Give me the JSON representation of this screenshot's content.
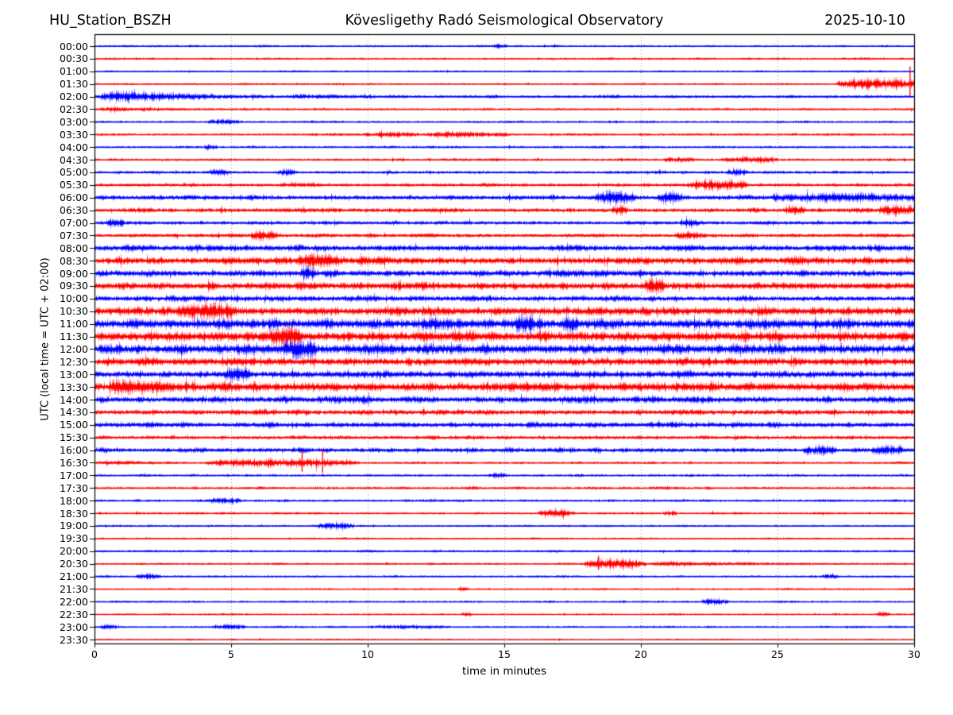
{
  "header": {
    "station": "HU_Station_BSZH",
    "observatory": "Kövesligethy Radó Seismological Observatory",
    "date": "2025-10-10"
  },
  "axes": {
    "ylabel": "UTC (local time = UTC + 02:00)",
    "xlabel": "time in minutes",
    "x_tick_labels": [
      "0",
      "5",
      "10",
      "15",
      "20",
      "25",
      "30"
    ],
    "x_tick_minutes": [
      0,
      5,
      10,
      15,
      20,
      25,
      30
    ],
    "x_grid_minutes": [
      5,
      10,
      15,
      20,
      25
    ]
  },
  "colors": {
    "trace_blue": "#0000ff",
    "trace_red": "#ff0000",
    "grid": "#999999",
    "frame": "#000000",
    "text": "#000000",
    "background": "#ffffff"
  },
  "chart_data": {
    "type": "line",
    "subtype": "helicorder-seismogram",
    "title": "HU_Station_BSZH — Kövesligethy Radó Seismological Observatory — 2025-10-10",
    "xlabel": "time in minutes",
    "ylabel": "UTC (local time = UTC + 02:00)",
    "x_range": [
      0,
      30
    ],
    "minutes_per_row": 30,
    "row_color_cycle": [
      "blue",
      "red"
    ],
    "rows": [
      {
        "utc": "00:00",
        "c": "b",
        "base": 1.7,
        "ev": [
          {
            "s": 14.6,
            "e": 15.1,
            "a": 3,
            "sh": "burst"
          }
        ]
      },
      {
        "utc": "00:30",
        "c": "r",
        "base": 1.7,
        "ev": []
      },
      {
        "utc": "01:00",
        "c": "b",
        "base": 1.5,
        "ev": []
      },
      {
        "utc": "01:30",
        "c": "r",
        "base": 1.5,
        "ev": [
          {
            "s": 27.2,
            "e": 30,
            "a": 8,
            "sh": "sustain"
          }
        ],
        "sp": [
          {
            "t": 29.85,
            "a": 22
          }
        ]
      },
      {
        "utc": "02:00",
        "c": "b",
        "base": 2.6,
        "ev": [
          {
            "s": 0,
            "e": 7,
            "a": 8,
            "sh": "decay"
          },
          {
            "s": 7,
            "e": 12,
            "a": 2,
            "sh": "decay"
          }
        ]
      },
      {
        "utc": "02:30",
        "c": "r",
        "base": 2.0,
        "ev": [
          {
            "s": 0,
            "e": 5.5,
            "a": 2.5,
            "sh": "decay"
          }
        ]
      },
      {
        "utc": "03:00",
        "c": "b",
        "base": 1.8,
        "ev": [
          {
            "s": 4.1,
            "e": 5.3,
            "a": 3.5,
            "sh": "burst"
          }
        ]
      },
      {
        "utc": "03:30",
        "c": "r",
        "base": 2.0,
        "ev": [
          {
            "s": 9.8,
            "e": 12,
            "a": 3,
            "sh": "burst"
          },
          {
            "s": 12,
            "e": 15.3,
            "a": 3.5,
            "sh": "burst"
          }
        ]
      },
      {
        "utc": "04:00",
        "c": "b",
        "base": 2.1,
        "ev": [
          {
            "s": 4,
            "e": 4.5,
            "a": 3.5,
            "sh": "burst"
          }
        ]
      },
      {
        "utc": "04:30",
        "c": "r",
        "base": 2.2,
        "ev": [
          {
            "s": 20.8,
            "e": 22,
            "a": 3,
            "sh": "burst"
          },
          {
            "s": 23,
            "e": 25,
            "a": 3.5,
            "sh": "burst"
          }
        ]
      },
      {
        "utc": "05:00",
        "c": "b",
        "base": 2.6,
        "ev": [
          {
            "s": 4.2,
            "e": 5,
            "a": 4,
            "sh": "burst"
          },
          {
            "s": 6.7,
            "e": 7.4,
            "a": 4,
            "sh": "burst"
          },
          {
            "s": 23.1,
            "e": 23.9,
            "a": 4,
            "sh": "burst"
          }
        ]
      },
      {
        "utc": "05:30",
        "c": "r",
        "base": 3.0,
        "ev": [
          {
            "s": 21.7,
            "e": 23.9,
            "a": 7,
            "sh": "burst"
          }
        ]
      },
      {
        "utc": "06:00",
        "c": "b",
        "base": 4.0,
        "ev": [
          {
            "s": 18.3,
            "e": 19.8,
            "a": 8,
            "sh": "burst"
          },
          {
            "s": 20.6,
            "e": 21.5,
            "a": 7,
            "sh": "burst"
          },
          {
            "s": 24.8,
            "e": 30,
            "a": 4,
            "sh": "sustain"
          }
        ]
      },
      {
        "utc": "06:30",
        "c": "r",
        "base": 3.6,
        "ev": [
          {
            "s": 18.9,
            "e": 19.5,
            "a": 5,
            "sh": "burst"
          },
          {
            "s": 25.2,
            "e": 26,
            "a": 5,
            "sh": "burst"
          },
          {
            "s": 28.7,
            "e": 30,
            "a": 6,
            "sh": "sustain"
          }
        ]
      },
      {
        "utc": "07:00",
        "c": "b",
        "base": 3.2,
        "ev": [
          {
            "s": 0.4,
            "e": 1.1,
            "a": 5,
            "sh": "burst"
          },
          {
            "s": 21.4,
            "e": 22.1,
            "a": 4,
            "sh": "burst"
          }
        ]
      },
      {
        "utc": "07:30",
        "c": "r",
        "base": 3.2,
        "ev": [
          {
            "s": 5.7,
            "e": 6.7,
            "a": 6,
            "sh": "burst"
          },
          {
            "s": 21.2,
            "e": 22.4,
            "a": 4,
            "sh": "burst"
          }
        ]
      },
      {
        "utc": "08:00",
        "c": "b",
        "base": 5.0,
        "ev": []
      },
      {
        "utc": "08:30",
        "c": "r",
        "base": 6.0,
        "ev": [
          {
            "s": 7.4,
            "e": 9.1,
            "a": 7,
            "sh": "burst"
          }
        ]
      },
      {
        "utc": "09:00",
        "c": "b",
        "base": 5.5,
        "ev": [
          {
            "s": 7.5,
            "e": 8.1,
            "a": 8,
            "sh": "burst"
          }
        ]
      },
      {
        "utc": "09:30",
        "c": "r",
        "base": 6.0,
        "ev": [
          {
            "s": 20.1,
            "e": 20.9,
            "a": 9,
            "sh": "burst"
          }
        ]
      },
      {
        "utc": "10:00",
        "c": "b",
        "base": 4.6,
        "ev": []
      },
      {
        "utc": "10:30",
        "c": "r",
        "base": 7.0,
        "ev": [
          {
            "s": 3,
            "e": 5.2,
            "a": 8,
            "sh": "burst"
          }
        ]
      },
      {
        "utc": "11:00",
        "c": "b",
        "base": 8.0,
        "ev": [
          {
            "s": 15.4,
            "e": 16.1,
            "a": 10,
            "sh": "burst"
          },
          {
            "s": 17.1,
            "e": 17.7,
            "a": 10,
            "sh": "burst"
          }
        ]
      },
      {
        "utc": "11:30",
        "c": "r",
        "base": 8.0,
        "ev": [
          {
            "s": 6.4,
            "e": 7.6,
            "a": 10,
            "sh": "burst"
          }
        ]
      },
      {
        "utc": "12:00",
        "c": "b",
        "base": 8.0,
        "ev": [
          {
            "s": 6.9,
            "e": 8.1,
            "a": 10,
            "sh": "burst"
          }
        ]
      },
      {
        "utc": "12:30",
        "c": "r",
        "base": 6.5,
        "ev": []
      },
      {
        "utc": "13:00",
        "c": "b",
        "base": 6.0,
        "ev": [
          {
            "s": 4.7,
            "e": 5.7,
            "a": 8,
            "sh": "burst"
          }
        ]
      },
      {
        "utc": "13:30",
        "c": "r",
        "base": 7.5,
        "ev": [
          {
            "s": 0.4,
            "e": 4,
            "a": 8,
            "sh": "decay"
          }
        ]
      },
      {
        "utc": "14:00",
        "c": "b",
        "base": 5.5,
        "ev": []
      },
      {
        "utc": "14:30",
        "c": "r",
        "base": 4.5,
        "ev": []
      },
      {
        "utc": "15:00",
        "c": "b",
        "base": 4.5,
        "ev": []
      },
      {
        "utc": "15:30",
        "c": "r",
        "base": 3.2,
        "ev": []
      },
      {
        "utc": "16:00",
        "c": "b",
        "base": 4.0,
        "ev": [
          {
            "s": 25.9,
            "e": 27.1,
            "a": 5,
            "sh": "burst"
          },
          {
            "s": 28.4,
            "e": 29.6,
            "a": 5,
            "sh": "burst"
          }
        ]
      },
      {
        "utc": "16:30",
        "c": "r",
        "base": 1.9,
        "ev": [
          {
            "s": 0,
            "e": 4,
            "a": 2.5,
            "sh": "decay"
          },
          {
            "s": 4,
            "e": 9.7,
            "a": 5.5,
            "sh": "burst"
          }
        ],
        "sp": [
          {
            "t": 7.6,
            "a": 15
          },
          {
            "t": 8.35,
            "a": 17
          }
        ]
      },
      {
        "utc": "17:00",
        "c": "b",
        "base": 2.0,
        "ev": [
          {
            "s": 14.4,
            "e": 15.1,
            "a": 3,
            "sh": "burst"
          }
        ]
      },
      {
        "utc": "17:30",
        "c": "r",
        "base": 2.2,
        "ev": []
      },
      {
        "utc": "18:00",
        "c": "b",
        "base": 2.2,
        "ev": [
          {
            "s": 4.1,
            "e": 5.4,
            "a": 3.5,
            "sh": "burst"
          }
        ]
      },
      {
        "utc": "18:30",
        "c": "r",
        "base": 2.0,
        "ev": [
          {
            "s": 16.2,
            "e": 17.6,
            "a": 4.5,
            "sh": "burst"
          },
          {
            "s": 20.8,
            "e": 21.3,
            "a": 3.5,
            "sh": "burst"
          }
        ]
      },
      {
        "utc": "19:00",
        "c": "b",
        "base": 1.8,
        "ev": [
          {
            "s": 8.1,
            "e": 9.5,
            "a": 4.5,
            "sh": "burst"
          }
        ]
      },
      {
        "utc": "19:30",
        "c": "r",
        "base": 1.6,
        "ev": []
      },
      {
        "utc": "20:00",
        "c": "b",
        "base": 2.0,
        "ev": []
      },
      {
        "utc": "20:30",
        "c": "r",
        "base": 1.6,
        "ev": [
          {
            "s": 17.9,
            "e": 20.2,
            "a": 7.5,
            "sh": "burst"
          },
          {
            "s": 20.2,
            "e": 27.6,
            "a": 3.5,
            "sh": "decay"
          }
        ],
        "sp": [
          {
            "t": 18.45,
            "a": 10
          }
        ]
      },
      {
        "utc": "21:00",
        "c": "b",
        "base": 1.8,
        "ev": [
          {
            "s": 1.5,
            "e": 2.4,
            "a": 3.5,
            "sh": "burst"
          },
          {
            "s": 26.6,
            "e": 27.2,
            "a": 3,
            "sh": "burst"
          }
        ]
      },
      {
        "utc": "21:30",
        "c": "r",
        "base": 1.5,
        "ev": [
          {
            "s": 13.3,
            "e": 13.7,
            "a": 2.5,
            "sh": "burst"
          }
        ]
      },
      {
        "utc": "22:00",
        "c": "b",
        "base": 1.6,
        "ev": [
          {
            "s": 22.2,
            "e": 23.2,
            "a": 4.5,
            "sh": "burst"
          }
        ]
      },
      {
        "utc": "22:30",
        "c": "r",
        "base": 1.5,
        "ev": [
          {
            "s": 13.4,
            "e": 13.8,
            "a": 2.5,
            "sh": "burst"
          },
          {
            "s": 28.6,
            "e": 29.1,
            "a": 3.5,
            "sh": "burst"
          }
        ]
      },
      {
        "utc": "23:00",
        "c": "b",
        "base": 1.7,
        "ev": [
          {
            "s": 0.2,
            "e": 0.8,
            "a": 3.5,
            "sh": "burst"
          },
          {
            "s": 4.3,
            "e": 5.5,
            "a": 3,
            "sh": "burst"
          },
          {
            "s": 10,
            "e": 13,
            "a": 2.2,
            "sh": "burst"
          }
        ]
      },
      {
        "utc": "23:30",
        "c": "r",
        "base": 1.4,
        "ev": []
      }
    ]
  }
}
